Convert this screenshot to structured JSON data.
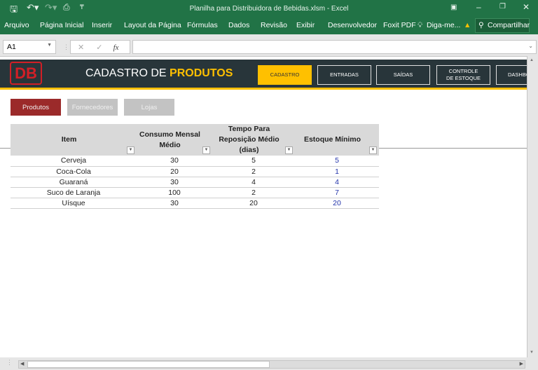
{
  "window": {
    "title": "Planilha para Distribuidora de Bebidas.xlsm - Excel"
  },
  "ribbon": {
    "tabs": [
      "Arquivo",
      "Página Inicial",
      "Inserir",
      "Layout da Página",
      "Fórmulas",
      "Dados",
      "Revisão",
      "Exibir",
      "Desenvolvedor",
      "Foxit PDF"
    ],
    "tell_me": "Diga-me...",
    "share": "Compartilhar"
  },
  "formula_bar": {
    "name_box": "A1",
    "fx": "fx",
    "value": ""
  },
  "header": {
    "logo": "DB",
    "title_plain": "CADASTRO DE ",
    "title_accent": "PRODUTOS",
    "accent_color": "#ffc000",
    "nav": [
      {
        "label": "CADASTRO",
        "active": true
      },
      {
        "label": "ENTRADAS"
      },
      {
        "label": "SAÍDAS"
      },
      {
        "label": "CONTROLE DE ESTOQUE"
      },
      {
        "label": "DASHBOARD"
      }
    ]
  },
  "subnav": [
    {
      "label": "Produtos",
      "active": true,
      "color": "#9b2a2a"
    },
    {
      "label": "Fornecedores"
    },
    {
      "label": "Lojas"
    }
  ],
  "table": {
    "headers": [
      "Item",
      "Consumo Mensal Médio",
      "Tempo Para Reposição Médio (dias)",
      "Estoque Mínimo"
    ],
    "rows": [
      [
        "Cerveja",
        "30",
        "5",
        "5"
      ],
      [
        "Coca-Cola",
        "20",
        "2",
        "1"
      ],
      [
        "Guaraná",
        "30",
        "4",
        "4"
      ],
      [
        "Suco de Laranja",
        "100",
        "2",
        "7"
      ],
      [
        "Uísque",
        "30",
        "20",
        "20"
      ]
    ]
  }
}
